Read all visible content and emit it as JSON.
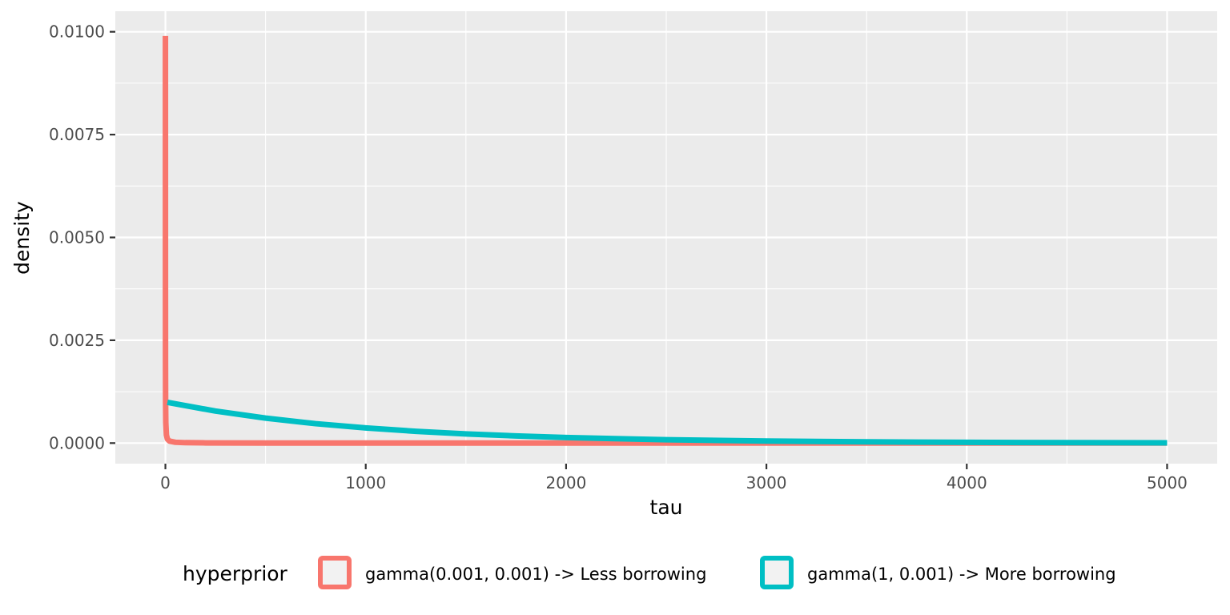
{
  "chart_data": {
    "type": "line",
    "xlabel": "tau",
    "ylabel": "density",
    "xlim": [
      -250,
      5250
    ],
    "ylim": [
      -0.0005,
      0.0105
    ],
    "x_ticks": [
      0,
      1000,
      2000,
      3000,
      4000,
      5000
    ],
    "x_tick_labels": [
      "0",
      "1000",
      "2000",
      "3000",
      "4000",
      "5000"
    ],
    "y_ticks": [
      0.0,
      0.0025,
      0.005,
      0.0075,
      0.01
    ],
    "y_tick_labels": [
      "0.0000",
      "0.0025",
      "0.0050",
      "0.0075",
      "0.0100"
    ],
    "grid": true,
    "legend": {
      "title": "hyperprior",
      "position": "bottom"
    },
    "series": [
      {
        "name": "gamma(0.001, 0.001) -> Less borrowing",
        "color": "#F8766D",
        "points": [
          [
            0.1,
            0.0099
          ],
          [
            0.2,
            0.00495
          ],
          [
            0.5,
            0.00198
          ],
          [
            1,
            0.00099
          ],
          [
            2,
            0.000495
          ],
          [
            5,
            0.000198
          ],
          [
            10,
            9.89e-05
          ],
          [
            20,
            4.94e-05
          ],
          [
            50,
            1.97e-05
          ],
          [
            100,
            9.82e-06
          ],
          [
            200,
            4.89e-06
          ],
          [
            500,
            1.9e-06
          ],
          [
            1000,
            9.1e-07
          ],
          [
            2000,
            4.1e-07
          ],
          [
            3000,
            2.4e-07
          ],
          [
            4000,
            1.5e-07
          ],
          [
            5000,
            1e-07
          ]
        ]
      },
      {
        "name": "gamma(1, 0.001) -> More borrowing",
        "color": "#00BFC4",
        "points": [
          [
            10,
            0.00099
          ],
          [
            250,
            0.000779
          ],
          [
            500,
            0.000607
          ],
          [
            750,
            0.000472
          ],
          [
            1000,
            0.000368
          ],
          [
            1250,
            0.000287
          ],
          [
            1500,
            0.000223
          ],
          [
            1750,
            0.000174
          ],
          [
            2000,
            0.000135
          ],
          [
            2500,
            8.21e-05
          ],
          [
            3000,
            4.98e-05
          ],
          [
            3500,
            3.02e-05
          ],
          [
            4000,
            1.83e-05
          ],
          [
            4500,
            1.11e-05
          ],
          [
            5000,
            6.7e-06
          ]
        ]
      }
    ]
  }
}
